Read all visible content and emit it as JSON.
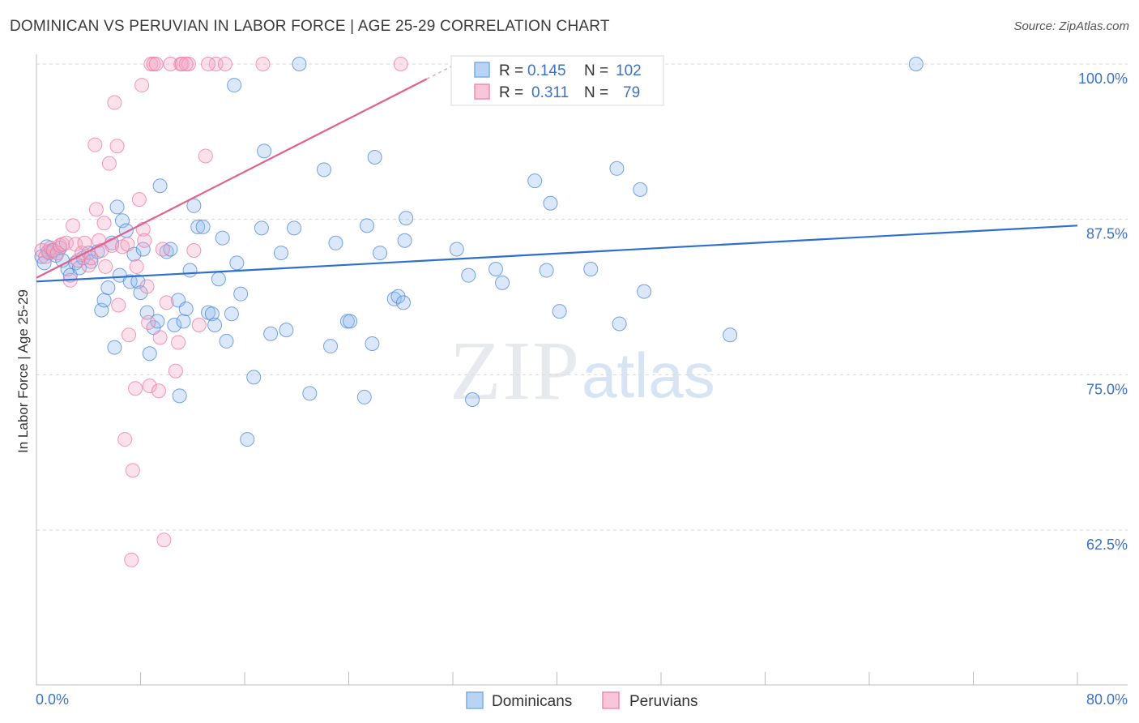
{
  "title": "DOMINICAN VS PERUVIAN IN LABOR FORCE | AGE 25-29 CORRELATION CHART",
  "source": "Source: ZipAtlas.com",
  "watermark": {
    "zip": "ZIP",
    "atlas": "atlas"
  },
  "legend": {
    "r_label": "R =",
    "n_label": "N =",
    "series": [
      {
        "name": "Dominicans",
        "r": "0.145",
        "n": "102",
        "color": "#7aaee8",
        "fill": "#b9d3f3"
      },
      {
        "name": "Peruvians",
        "r": "0.311",
        "n": "79",
        "color": "#f08cb0",
        "fill": "#f8c6d8"
      }
    ]
  },
  "chart_data": {
    "type": "scatter",
    "title": "DOMINICAN VS PERUVIAN IN LABOR FORCE | AGE 25-29 CORRELATION CHART",
    "xlabel": "",
    "ylabel": "In Labor Force | Age 25-29",
    "xlim": [
      0,
      80
    ],
    "ylim": [
      50,
      102
    ],
    "x_tick_labels": [
      "0.0%",
      "80.0%"
    ],
    "y_ticks": [
      62.5,
      75.0,
      87.5,
      100.0
    ],
    "y_tick_labels": [
      "62.5%",
      "75.0%",
      "87.5%",
      "100.0%"
    ],
    "series": [
      {
        "name": "Dominicans",
        "color": "#4a86d8",
        "trend": {
          "x": [
            0,
            80
          ],
          "y": [
            82.5,
            87.0
          ],
          "color": "#2f6fcc"
        },
        "points": [
          [
            0.4,
            84.5
          ],
          [
            0.6,
            84.0
          ],
          [
            0.8,
            85.3
          ],
          [
            1.0,
            84.8
          ],
          [
            1.2,
            85.0
          ],
          [
            1.5,
            84.6
          ],
          [
            1.8,
            85.2
          ],
          [
            2.0,
            84.2
          ],
          [
            2.4,
            83.5
          ],
          [
            2.6,
            83.0
          ],
          [
            3.0,
            84.0
          ],
          [
            3.3,
            83.6
          ],
          [
            3.6,
            84.4
          ],
          [
            4.0,
            84.8
          ],
          [
            4.2,
            84.1
          ],
          [
            4.7,
            84.9
          ],
          [
            5.0,
            80.2
          ],
          [
            5.2,
            81.0
          ],
          [
            5.5,
            82.0
          ],
          [
            5.8,
            85.6
          ],
          [
            6.0,
            77.2
          ],
          [
            6.2,
            88.5
          ],
          [
            6.4,
            83.0
          ],
          [
            6.6,
            87.4
          ],
          [
            6.9,
            86.6
          ],
          [
            7.2,
            82.5
          ],
          [
            7.5,
            84.7
          ],
          [
            7.8,
            82.5
          ],
          [
            8.0,
            81.6
          ],
          [
            8.2,
            85.1
          ],
          [
            8.5,
            80.0
          ],
          [
            8.7,
            76.7
          ],
          [
            9.0,
            78.8
          ],
          [
            9.3,
            79.3
          ],
          [
            9.5,
            90.2
          ],
          [
            10.0,
            84.9
          ],
          [
            10.3,
            85.1
          ],
          [
            10.6,
            79.0
          ],
          [
            10.9,
            81.0
          ],
          [
            11.0,
            73.3
          ],
          [
            11.3,
            79.3
          ],
          [
            11.5,
            80.3
          ],
          [
            11.8,
            83.4
          ],
          [
            12.1,
            88.6
          ],
          [
            12.4,
            86.9
          ],
          [
            12.8,
            86.9
          ],
          [
            13.2,
            80.0
          ],
          [
            13.5,
            79.9
          ],
          [
            13.7,
            79.0
          ],
          [
            14.0,
            82.7
          ],
          [
            14.3,
            86.0
          ],
          [
            14.6,
            77.7
          ],
          [
            15.0,
            79.9
          ],
          [
            15.2,
            98.3
          ],
          [
            15.4,
            84.0
          ],
          [
            15.7,
            81.5
          ],
          [
            16.2,
            69.8
          ],
          [
            16.7,
            74.8
          ],
          [
            17.3,
            86.8
          ],
          [
            17.5,
            93.0
          ],
          [
            18.0,
            78.3
          ],
          [
            18.8,
            84.8
          ],
          [
            19.2,
            78.6
          ],
          [
            19.8,
            86.8
          ],
          [
            20.2,
            100.0
          ],
          [
            21.0,
            73.5
          ],
          [
            22.1,
            91.5
          ],
          [
            22.6,
            77.3
          ],
          [
            23.0,
            85.6
          ],
          [
            23.9,
            79.3
          ],
          [
            24.1,
            79.3
          ],
          [
            25.2,
            73.2
          ],
          [
            25.4,
            87.0
          ],
          [
            25.8,
            77.5
          ],
          [
            26.4,
            84.8
          ],
          [
            26.0,
            92.5
          ],
          [
            27.5,
            81.1
          ],
          [
            27.8,
            81.3
          ],
          [
            28.2,
            80.8
          ],
          [
            28.3,
            85.8
          ],
          [
            28.4,
            87.6
          ],
          [
            32.3,
            85.1
          ],
          [
            33.2,
            83.0
          ],
          [
            33.5,
            73.0
          ],
          [
            35.3,
            83.5
          ],
          [
            35.8,
            82.4
          ],
          [
            38.3,
            90.6
          ],
          [
            39.2,
            83.4
          ],
          [
            39.5,
            88.8
          ],
          [
            40.2,
            80.1
          ],
          [
            42.6,
            83.5
          ],
          [
            44.6,
            91.6
          ],
          [
            44.8,
            79.1
          ],
          [
            46.4,
            89.9
          ],
          [
            46.7,
            81.7
          ],
          [
            53.3,
            78.2
          ],
          [
            67.6,
            100.0
          ]
        ]
      },
      {
        "name": "Peruvians",
        "color": "#ec77a0",
        "trend": {
          "x": [
            0,
            30
          ],
          "y": [
            82.8,
            98.8
          ],
          "color": "#e0608f"
        },
        "points": [
          [
            0.4,
            85.0
          ],
          [
            0.7,
            84.5
          ],
          [
            0.9,
            84.9
          ],
          [
            1.1,
            85.2
          ],
          [
            1.3,
            85.0
          ],
          [
            1.6,
            84.8
          ],
          [
            1.8,
            85.4
          ],
          [
            2.0,
            85.5
          ],
          [
            2.3,
            85.6
          ],
          [
            2.6,
            82.6
          ],
          [
            2.8,
            87.0
          ],
          [
            3.0,
            85.5
          ],
          [
            3.2,
            84.2
          ],
          [
            3.5,
            84.8
          ],
          [
            3.7,
            85.6
          ],
          [
            4.0,
            83.8
          ],
          [
            4.2,
            84.4
          ],
          [
            4.5,
            93.5
          ],
          [
            4.6,
            88.3
          ],
          [
            4.8,
            85.8
          ],
          [
            5.0,
            85.0
          ],
          [
            5.2,
            87.2
          ],
          [
            5.3,
            83.7
          ],
          [
            5.6,
            92.0
          ],
          [
            5.8,
            85.4
          ],
          [
            6.0,
            96.9
          ],
          [
            6.2,
            93.4
          ],
          [
            6.3,
            80.6
          ],
          [
            6.6,
            85.3
          ],
          [
            6.8,
            69.8
          ],
          [
            7.0,
            85.5
          ],
          [
            7.1,
            78.2
          ],
          [
            7.3,
            60.1
          ],
          [
            7.4,
            67.3
          ],
          [
            7.6,
            73.9
          ],
          [
            7.7,
            83.7
          ],
          [
            7.9,
            89.1
          ],
          [
            8.1,
            98.3
          ],
          [
            8.2,
            86.7
          ],
          [
            8.3,
            85.8
          ],
          [
            8.5,
            82.1
          ],
          [
            8.6,
            79.2
          ],
          [
            8.7,
            74.1
          ],
          [
            8.8,
            100.0
          ],
          [
            9.0,
            100.0
          ],
          [
            9.2,
            100.0
          ],
          [
            9.4,
            73.7
          ],
          [
            9.5,
            78.0
          ],
          [
            9.7,
            85.1
          ],
          [
            9.8,
            61.7
          ],
          [
            10.0,
            80.8
          ],
          [
            10.3,
            100.0
          ],
          [
            10.7,
            75.3
          ],
          [
            10.9,
            77.6
          ],
          [
            11.1,
            100.0
          ],
          [
            11.2,
            100.0
          ],
          [
            11.7,
            100.0
          ],
          [
            12.1,
            85.0
          ],
          [
            12.5,
            79.0
          ],
          [
            13.0,
            92.6
          ],
          [
            13.8,
            100.0
          ],
          [
            14.5,
            100.0
          ],
          [
            17.4,
            100.0
          ],
          [
            28.0,
            100.0
          ],
          [
            11.5,
            100.0
          ],
          [
            13.2,
            100.0
          ]
        ]
      }
    ]
  }
}
